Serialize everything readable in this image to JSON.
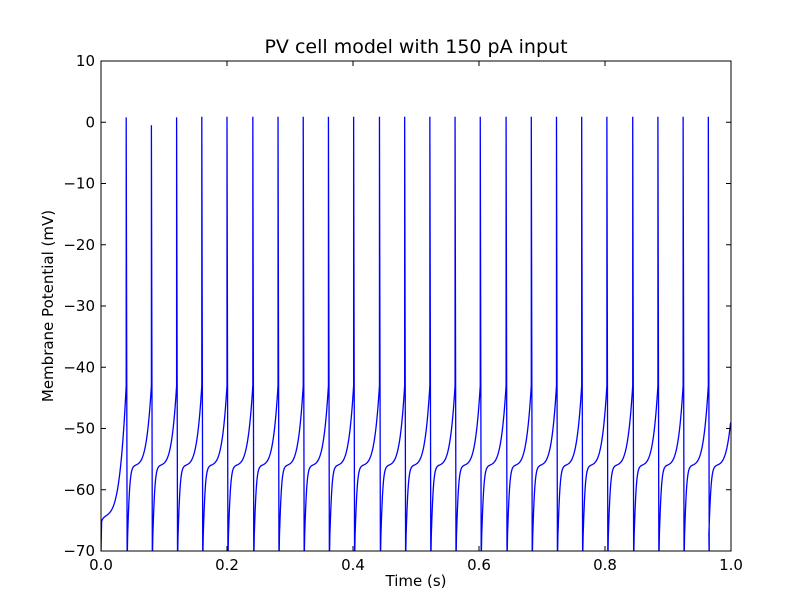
{
  "chart_data": {
    "type": "line",
    "title": "PV cell model with 150 pA input",
    "xlabel": "Time (s)",
    "ylabel": "Membrane Potential (mV)",
    "xlim": [
      0.0,
      1.0
    ],
    "ylim": [
      -70,
      10
    ],
    "x_ticks": [
      "0.0",
      "0.2",
      "0.4",
      "0.6",
      "0.8",
      "1.0"
    ],
    "y_ticks": [
      "10",
      "0",
      "−10",
      "−20",
      "−30",
      "−40",
      "−50",
      "−60",
      "−70"
    ],
    "grid": false,
    "legend": "none",
    "series": [
      {
        "color": "#0000ff",
        "resting_start_mV": -70,
        "spike_threshold_mV": -43,
        "spike_peak_mV": [
          0.8,
          -0.5,
          0.8,
          0.9,
          0.9,
          0.9,
          0.9,
          0.9,
          0.9,
          0.9,
          0.9,
          0.9,
          0.9,
          0.9,
          0.9,
          0.9,
          0.9,
          0.9,
          0.9,
          0.9,
          0.9,
          0.9,
          0.9,
          0.9
        ],
        "spike_times_s": [
          0.04,
          0.08,
          0.12,
          0.16,
          0.2,
          0.241,
          0.281,
          0.321,
          0.361,
          0.401,
          0.442,
          0.482,
          0.522,
          0.562,
          0.602,
          0.643,
          0.683,
          0.723,
          0.763,
          0.803,
          0.844,
          0.884,
          0.924,
          0.964
        ],
        "end_value_mV": -49
      }
    ]
  }
}
